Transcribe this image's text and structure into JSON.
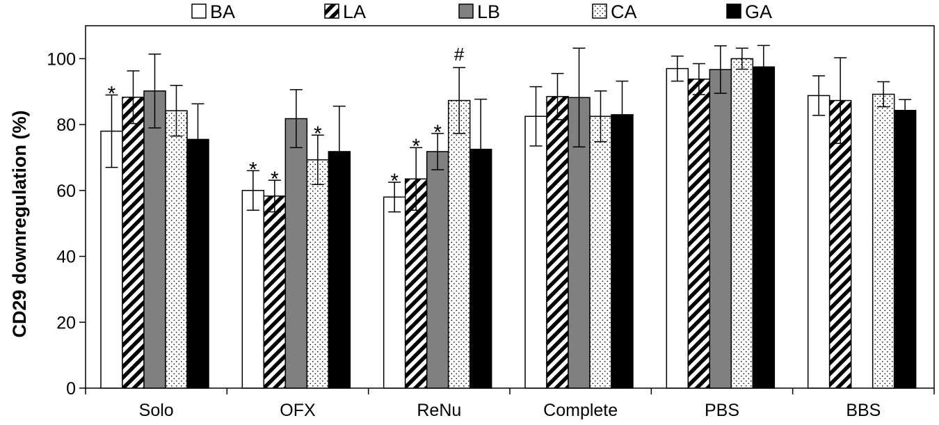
{
  "chart_data": {
    "type": "bar",
    "title": "",
    "xlabel": "",
    "ylabel": "CD29 downregulation (%)",
    "ylim": [
      0,
      110
    ],
    "yticks": [
      0,
      20,
      40,
      60,
      80,
      100
    ],
    "ytick_labels": [
      "0",
      "20",
      "40",
      "60",
      "80",
      "100"
    ],
    "grid": false,
    "legend_position": "top",
    "categories": [
      "Solo",
      "OFX",
      "ReNu",
      "Complete",
      "PBS",
      "BBS"
    ],
    "series": [
      {
        "name": "BA",
        "pattern": "white",
        "values": [
          78,
          60,
          58,
          82.5,
          97,
          88.8
        ],
        "errors": [
          11,
          6,
          4.5,
          9,
          3.8,
          6
        ],
        "annotations": [
          "*",
          "*",
          "*",
          "",
          "",
          ""
        ]
      },
      {
        "name": "LA",
        "pattern": "hatched",
        "values": [
          88.3,
          58.3,
          63.5,
          88.5,
          93.8,
          87.3
        ],
        "errors": [
          8,
          4.8,
          9.5,
          7,
          4.7,
          13
        ],
        "annotations": [
          "",
          "*",
          "*",
          "",
          "",
          ""
        ]
      },
      {
        "name": "LB",
        "pattern": "gray",
        "values": [
          90.2,
          81.8,
          71.8,
          88.2,
          96.7,
          null
        ],
        "errors": [
          11.2,
          8.8,
          5.5,
          15,
          7.2,
          null
        ],
        "annotations": [
          "",
          "",
          "*",
          "",
          "",
          ""
        ]
      },
      {
        "name": "CA",
        "pattern": "dotted",
        "values": [
          84.2,
          69.3,
          87.3,
          82.5,
          100,
          89.2
        ],
        "errors": [
          7.7,
          7.5,
          10,
          7.7,
          3.2,
          3.8
        ],
        "annotations": [
          "",
          "*",
          "#",
          "",
          "",
          ""
        ]
      },
      {
        "name": "GA",
        "pattern": "black",
        "values": [
          75.5,
          71.8,
          72.5,
          83,
          97.5,
          84.3
        ],
        "errors": [
          10.8,
          13.8,
          15.2,
          10.2,
          6.5,
          3.3
        ],
        "annotations": [
          "",
          "",
          "",
          "",
          "",
          ""
        ]
      }
    ]
  }
}
